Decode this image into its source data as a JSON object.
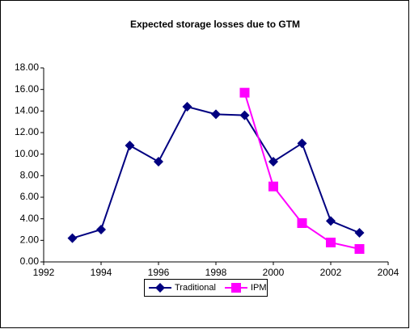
{
  "chart_data": {
    "type": "line",
    "title": "Expected storage losses due to GTM",
    "x": [
      1993,
      1994,
      1995,
      1996,
      1997,
      1998,
      1999,
      2000,
      2001,
      2002,
      2003
    ],
    "series": [
      {
        "name": "Traditional",
        "color": "#000080",
        "marker": "diamond",
        "values": [
          2.2,
          3.0,
          10.8,
          9.3,
          14.4,
          13.7,
          13.6,
          9.3,
          11.0,
          3.8,
          2.7
        ]
      },
      {
        "name": "IPM",
        "color": "#ff00ff",
        "marker": "square",
        "values": [
          null,
          null,
          null,
          null,
          null,
          null,
          15.7,
          7.0,
          3.6,
          1.8,
          1.2
        ]
      }
    ],
    "xlim": [
      1992,
      2004
    ],
    "xticks": [
      1992,
      1994,
      1996,
      1998,
      2000,
      2002,
      2004
    ],
    "ylim": [
      0,
      18
    ],
    "yticks": [
      {
        "value": 0,
        "label": "0.00"
      },
      {
        "value": 2,
        "label": "2.00"
      },
      {
        "value": 4,
        "label": "4.00"
      },
      {
        "value": 6,
        "label": "6.00"
      },
      {
        "value": 8,
        "label": "8.00"
      },
      {
        "value": 10,
        "label": "10.00"
      },
      {
        "value": 12,
        "label": "12.00"
      },
      {
        "value": 14,
        "label": "14.00"
      },
      {
        "value": 16,
        "label": "16.00"
      },
      {
        "value": 18,
        "label": "18.00"
      }
    ],
    "legend": "bottom"
  }
}
